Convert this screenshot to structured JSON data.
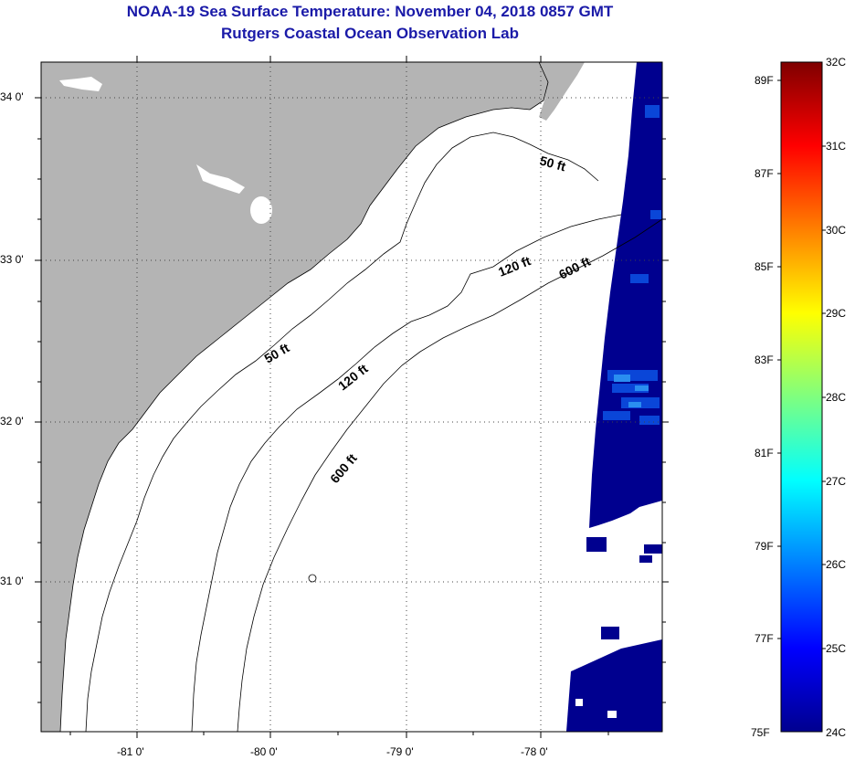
{
  "title": "NOAA-19 Sea Surface Temperature:  November 04, 2018 0857 GMT",
  "subtitle": "Rutgers Coastal Ocean Observation Lab",
  "map": {
    "lat_labels": [
      "34 0'",
      "33 0'",
      "32 0'",
      "31 0'"
    ],
    "lon_labels": [
      "-81 0'",
      "-80 0'",
      "-79 0'",
      "-78 0'"
    ],
    "contours": [
      "50 ft",
      "50 ft",
      "120 ft",
      "120 ft",
      "600 ft",
      "600 ft"
    ],
    "colors": {
      "land": "#b4b4b4",
      "sea": "#ffffff",
      "sst_low": "#00008f"
    }
  },
  "colorbar": {
    "celsius": [
      "32C",
      "31C",
      "30C",
      "29C",
      "28C",
      "27C",
      "26C",
      "25C",
      "24C"
    ],
    "fahrenheit": [
      "89F",
      "87F",
      "85F",
      "83F",
      "81F",
      "79F",
      "77F",
      "75F"
    ]
  }
}
